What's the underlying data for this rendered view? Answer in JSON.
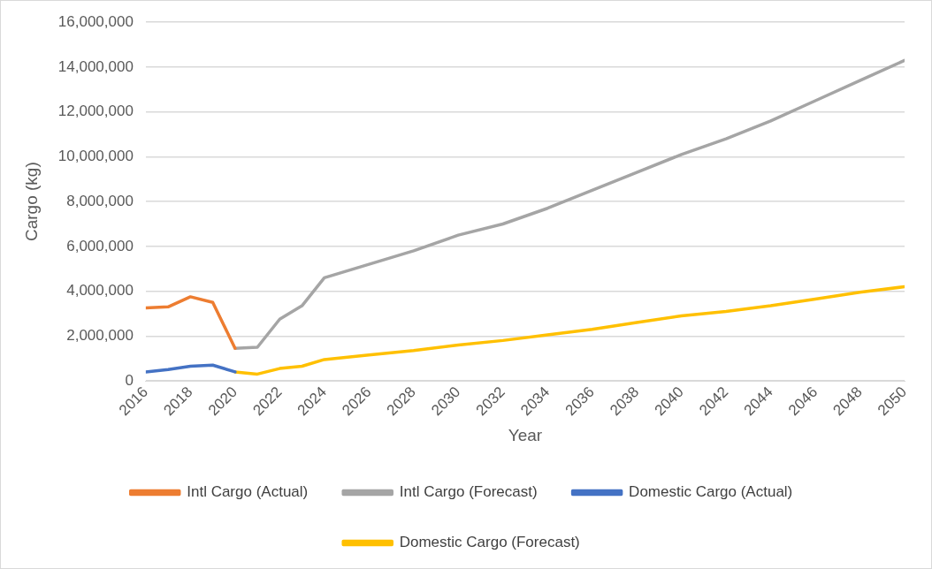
{
  "chart_data": {
    "type": "line",
    "xlabel": "Year",
    "ylabel": "Cargo (kg)",
    "xlim": [
      2016,
      2050
    ],
    "xticks": [
      2016,
      2018,
      2020,
      2022,
      2024,
      2026,
      2028,
      2030,
      2032,
      2034,
      2036,
      2038,
      2040,
      2042,
      2044,
      2046,
      2048,
      2050
    ],
    "ylim": [
      0,
      16000000
    ],
    "yticks": [
      {
        "value": 0,
        "label": "0"
      },
      {
        "value": 2000000,
        "label": "2,000,000"
      },
      {
        "value": 4000000,
        "label": "4,000,000"
      },
      {
        "value": 6000000,
        "label": "6,000,000"
      },
      {
        "value": 8000000,
        "label": "8,000,000"
      },
      {
        "value": 10000000,
        "label": "10,000,000"
      },
      {
        "value": 12000000,
        "label": "12,000,000"
      },
      {
        "value": 14000000,
        "label": "14,000,000"
      },
      {
        "value": 16000000,
        "label": "16,000,000"
      }
    ],
    "grid": "y",
    "legend": "bottom",
    "marker": "none",
    "line_style": "solid",
    "series": [
      {
        "name": "Intl Cargo (Actual)",
        "color": "#ed7d31",
        "x": [
          2016,
          2017,
          2018,
          2019,
          2020
        ],
        "values": [
          3250000,
          3300000,
          3750000,
          3500000,
          1450000
        ]
      },
      {
        "name": "Intl Cargo (Forecast)",
        "color": "#a5a5a5",
        "x": [
          2020,
          2021,
          2022,
          2023,
          2024,
          2026,
          2028,
          2030,
          2032,
          2034,
          2036,
          2038,
          2040,
          2042,
          2044,
          2046,
          2048,
          2050
        ],
        "values": [
          1450000,
          1500000,
          2750000,
          3350000,
          4600000,
          5200000,
          5800000,
          6500000,
          7000000,
          7700000,
          8500000,
          9300000,
          10100000,
          10800000,
          11600000,
          12500000,
          13400000,
          14300000
        ]
      },
      {
        "name": "Domestic Cargo (Actual)",
        "color": "#4472c4",
        "x": [
          2016,
          2017,
          2018,
          2019,
          2020
        ],
        "values": [
          400000,
          500000,
          650000,
          700000,
          400000
        ]
      },
      {
        "name": "Domestic Cargo (Forecast)",
        "color": "#ffc000",
        "x": [
          2020,
          2021,
          2022,
          2023,
          2024,
          2026,
          2028,
          2030,
          2032,
          2034,
          2036,
          2038,
          2040,
          2042,
          2044,
          2046,
          2048,
          2050
        ],
        "values": [
          400000,
          300000,
          550000,
          650000,
          950000,
          1150000,
          1350000,
          1600000,
          1800000,
          2050000,
          2300000,
          2600000,
          2900000,
          3100000,
          3350000,
          3650000,
          3950000,
          4200000
        ]
      }
    ]
  }
}
